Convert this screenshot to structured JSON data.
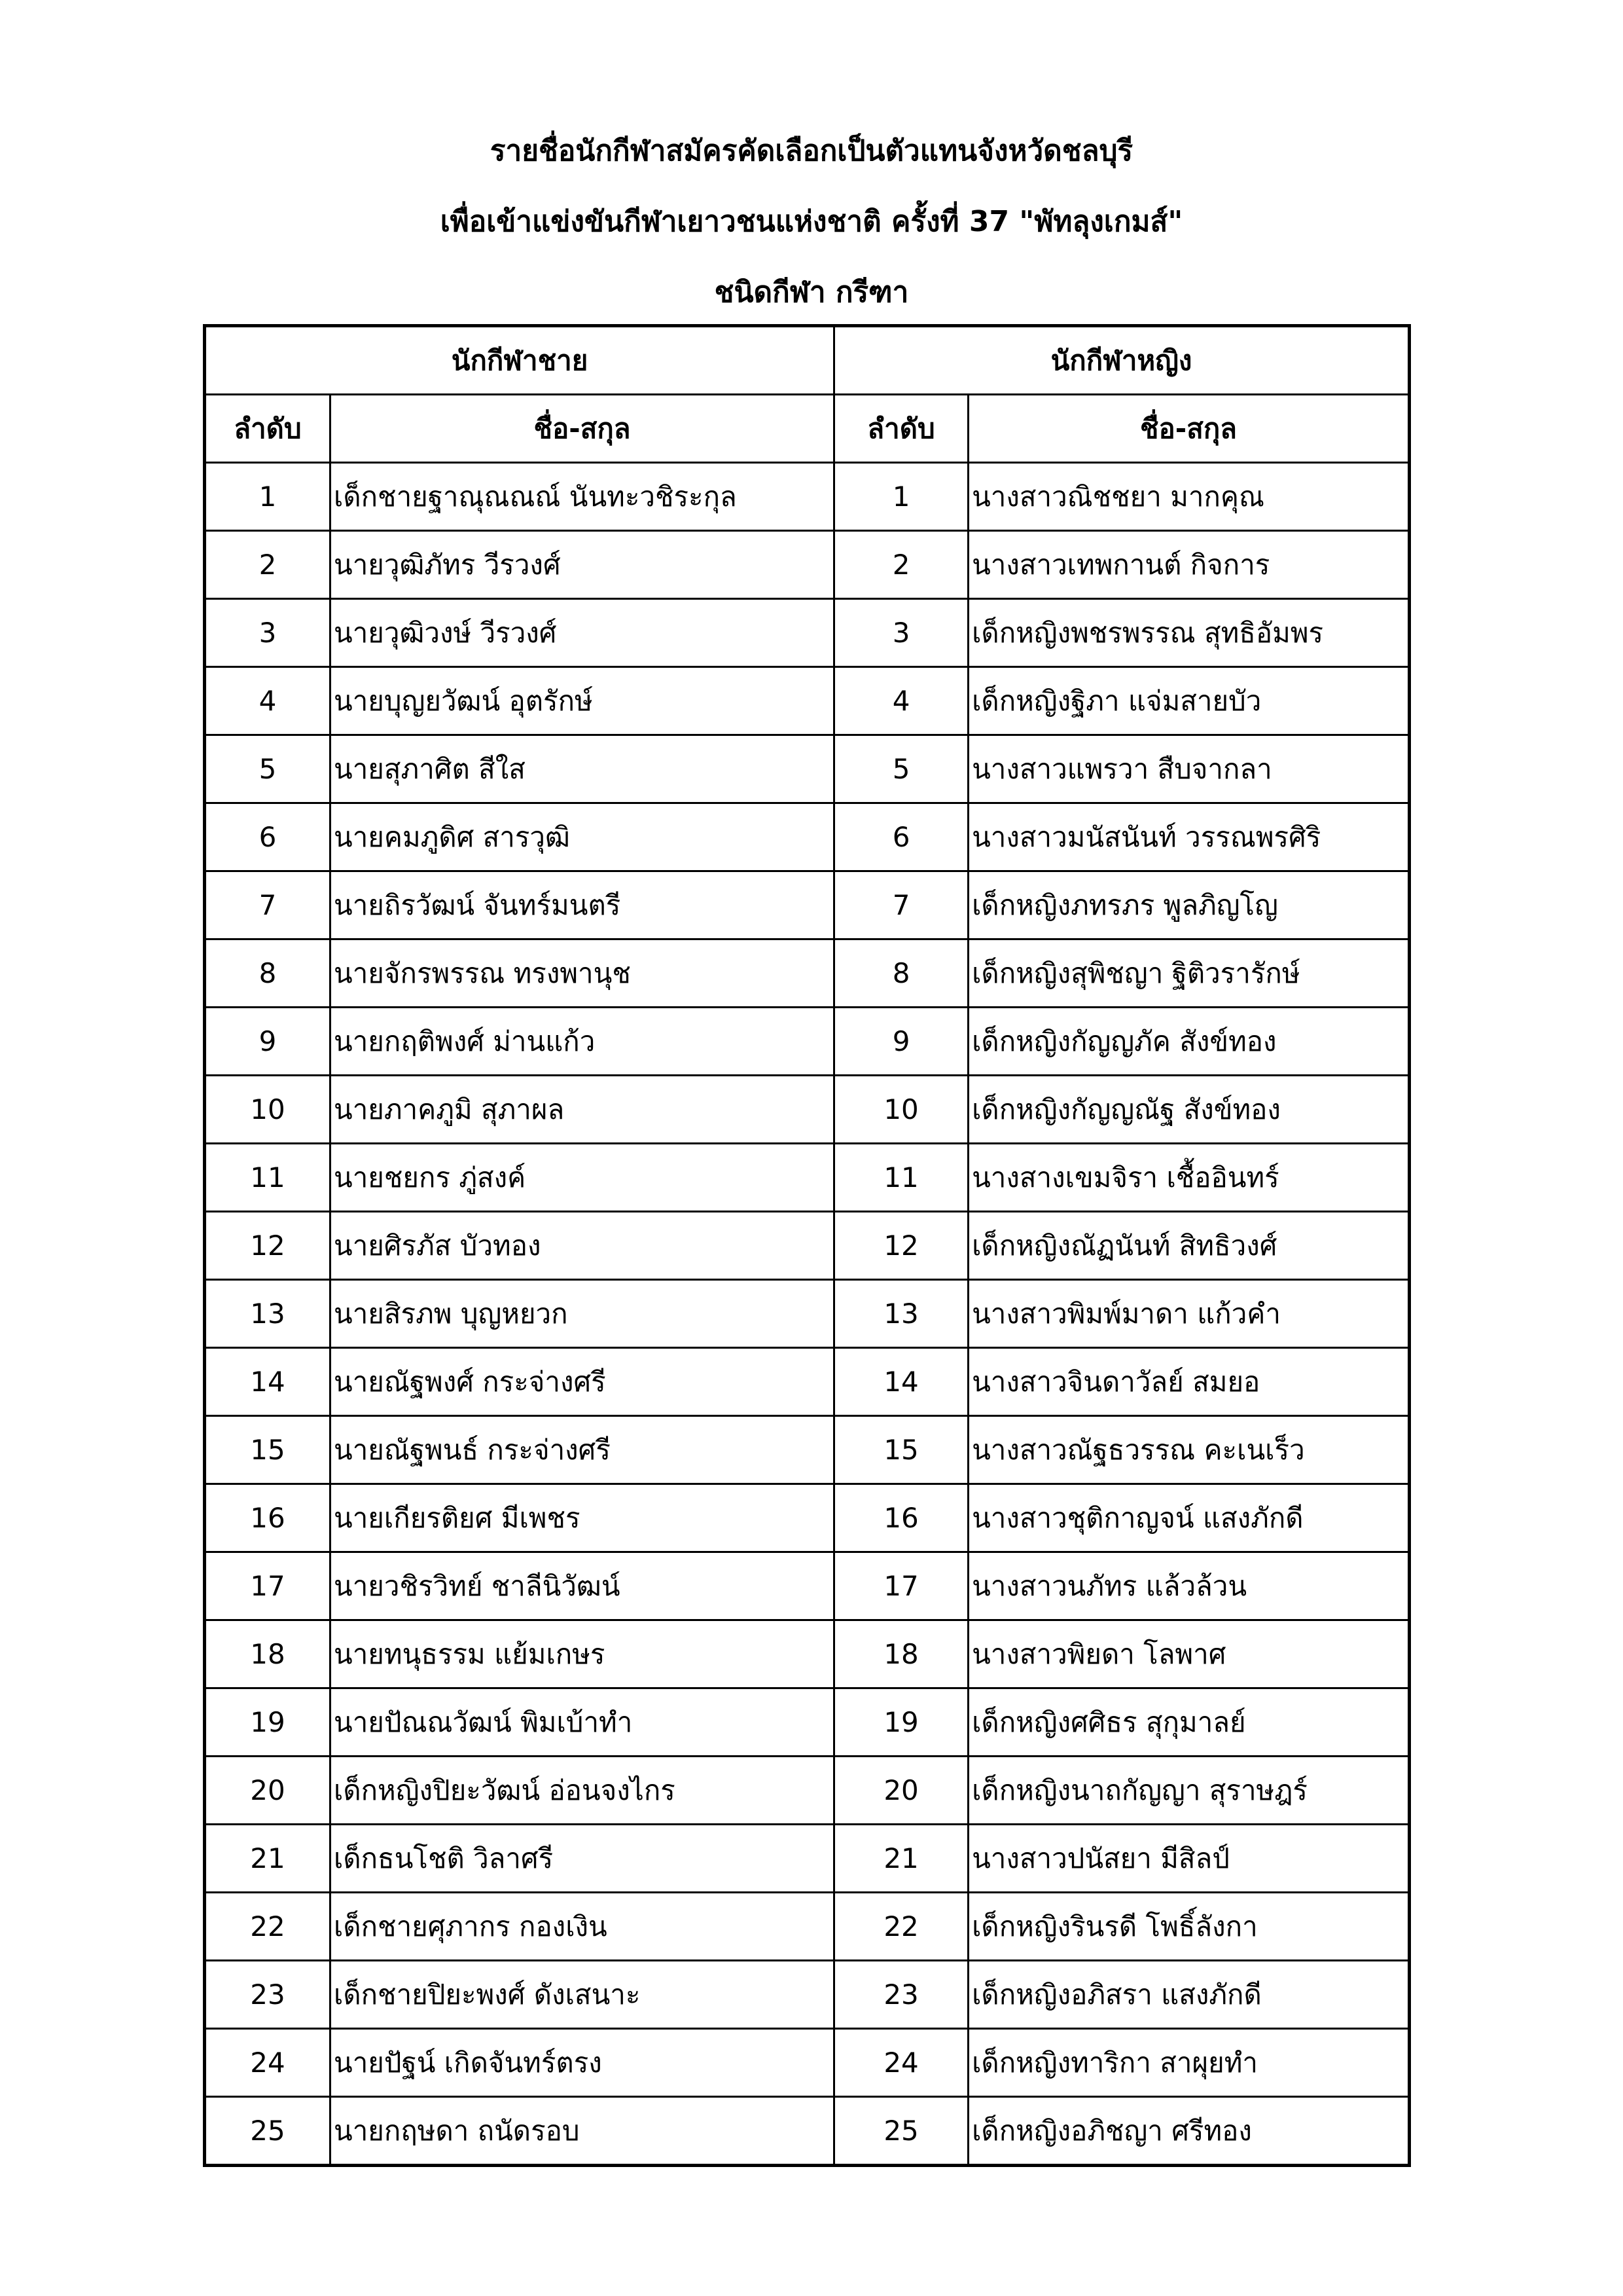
{
  "title_line1": "รายชื่อนักกีฬาสมัครคัดเลือกเป็นตัวแทนจังหวัดชลบุรี",
  "title_line2": "เพื่อเข้าแข่งขันกีฬาเยาวชนแห่งชาติ ครั้งที่ 37  \"พัทลุงเกมส์\"",
  "title_line3": "ชนิดกีฬา  กรีฑา",
  "table": {
    "group_male": "นักกีฬาชาย",
    "group_female": "นักกีฬาหญิง",
    "col_no": "ลำดับ",
    "col_name": "ชื่อ-สกุล",
    "rows": [
      {
        "m_no": "1",
        "m_name": "เด็กชายฐาณุณณณ์  นันทะวชิระกุล",
        "f_no": "1",
        "f_name": "นางสาวณิชชยา  มากคุณ"
      },
      {
        "m_no": "2",
        "m_name": "นายวุฒิภัทร  วีรวงศ์",
        "f_no": "2",
        "f_name": "นางสาวเทพกานต์  กิจการ"
      },
      {
        "m_no": "3",
        "m_name": "นายวุฒิวงษ์  วีรวงศ์",
        "f_no": "3",
        "f_name": "เด็กหญิงพชรพรรณ  สุทธิอัมพร"
      },
      {
        "m_no": "4",
        "m_name": "นายบุญยวัฒน์  อุตรักษ์",
        "f_no": "4",
        "f_name": "เด็กหญิงฐิภา  แจ่มสายบัว"
      },
      {
        "m_no": "5",
        "m_name": "นายสุภาศิต  สีใส",
        "f_no": "5",
        "f_name": "นางสาวแพรวา  สืบจากลา"
      },
      {
        "m_no": "6",
        "m_name": "นายคมภูดิศ  สารวุฒิ",
        "f_no": "6",
        "f_name": "นางสาวมนัสนันท์  วรรณพรศิริ"
      },
      {
        "m_no": "7",
        "m_name": "นายถิรวัฒน์  จันทร์มนตรี",
        "f_no": "7",
        "f_name": "เด็กหญิงภทรภร  พูลภิญโญ"
      },
      {
        "m_no": "8",
        "m_name": "นายจักรพรรณ  ทรงพานุช",
        "f_no": "8",
        "f_name": "เด็กหญิงสุพิชญา  ฐิติวรารักษ์"
      },
      {
        "m_no": "9",
        "m_name": "นายกฤติพงศ์  ม่านแก้ว",
        "f_no": "9",
        "f_name": "เด็กหญิงกัญญภัค  สังข์ทอง"
      },
      {
        "m_no": "10",
        "m_name": "นายภาคภูมิ  สุภาผล",
        "f_no": "10",
        "f_name": "เด็กหญิงกัญญณัฐ  สังข์ทอง"
      },
      {
        "m_no": "11",
        "m_name": "นายชยกร  ภู่สงค์",
        "f_no": "11",
        "f_name": "นางสางเขมจิรา  เชื้ออินทร์"
      },
      {
        "m_no": "12",
        "m_name": "นายศิรภัส  บัวทอง",
        "f_no": "12",
        "f_name": "เด็กหญิงณัฏนันท์  สิทธิวงศ์"
      },
      {
        "m_no": "13",
        "m_name": "นายสิรภพ  บุญหยวก",
        "f_no": "13",
        "f_name": "นางสาวพิมพ์มาดา  แก้วคำ"
      },
      {
        "m_no": "14",
        "m_name": "นายณัฐพงศ์  กระจ่างศรี",
        "f_no": "14",
        "f_name": "นางสาวจินดาวัลย์  สมยอ"
      },
      {
        "m_no": "15",
        "m_name": "นายณัฐพนธ์  กระจ่างศรี",
        "f_no": "15",
        "f_name": "นางสาวณัฐธวรรณ  คะเนเร็ว"
      },
      {
        "m_no": "16",
        "m_name": "นายเกียรติยศ  มีเพชร",
        "f_no": "16",
        "f_name": "นางสาวชุติกาญจน์  แสงภักดี"
      },
      {
        "m_no": "17",
        "m_name": "นายวชิรวิทย์  ชาลีนิวัฒน์",
        "f_no": "17",
        "f_name": "นางสาวนภัทร  แล้วล้วน"
      },
      {
        "m_no": "18",
        "m_name": "นายทนุธรรม  แย้มเกษร",
        "f_no": "18",
        "f_name": "นางสาวพิยดา  โลพาศ"
      },
      {
        "m_no": "19",
        "m_name": "นายปัณณวัฒน์  พิมเบ้าทำ",
        "f_no": "19",
        "f_name": "เด็กหญิงศศิธร  สุกุมาลย์"
      },
      {
        "m_no": "20",
        "m_name": "เด็กหญิงปิยะวัฒน์  อ่อนจงไกร",
        "f_no": "20",
        "f_name": "เด็กหญิงนาถกัญญา  สุราษฎร์"
      },
      {
        "m_no": "21",
        "m_name": "เด็กธนโชติ  วิลาศรี",
        "f_no": "21",
        "f_name": "นางสาวปนัสยา  มีสิลป์"
      },
      {
        "m_no": "22",
        "m_name": "เด็กชายศุภากร  กองเงิน",
        "f_no": "22",
        "f_name": "เด็กหญิงรินรดี  โพธิ์ลังกา"
      },
      {
        "m_no": "23",
        "m_name": "เด็กชายปิยะพงศ์  ดังเสนาะ",
        "f_no": "23",
        "f_name": "เด็กหญิงอภิสรา  แสงภักดี"
      },
      {
        "m_no": "24",
        "m_name": "นายปัฐน์  เกิดจันทร์ตรง",
        "f_no": "24",
        "f_name": "เด็กหญิงทาริกา  สาผุยทำ"
      },
      {
        "m_no": "25",
        "m_name": "นายกฤษดา  ถนัดรอบ",
        "f_no": "25",
        "f_name": "เด็กหญิงอภิชญา  ศรีทอง"
      }
    ]
  }
}
